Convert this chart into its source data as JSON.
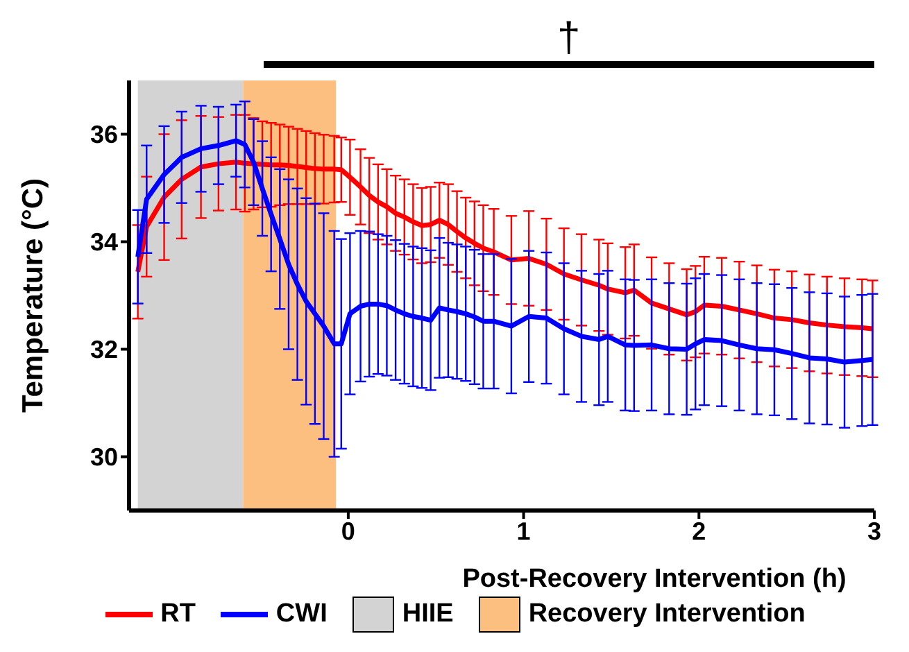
{
  "chart_data": {
    "type": "line",
    "xlabel": "Post-Recovery Intervention (h)",
    "ylabel": "Temperature (°C)",
    "annotations": [
      "†"
    ],
    "x": [
      -1.2,
      -1.15,
      -1.05,
      -0.95,
      -0.84,
      -0.74,
      -0.64,
      -0.59,
      -0.54,
      -0.49,
      -0.44,
      -0.39,
      -0.34,
      -0.29,
      -0.24,
      -0.19,
      -0.14,
      -0.08,
      -0.04,
      0.01,
      0.07,
      0.12,
      0.17,
      0.22,
      0.27,
      0.32,
      0.37,
      0.42,
      0.47,
      0.52,
      0.57,
      0.62,
      0.67,
      0.72,
      0.77,
      0.83,
      0.93,
      1.03,
      1.13,
      1.23,
      1.33,
      1.43,
      1.48,
      1.58,
      1.63,
      1.73,
      1.83,
      1.93,
      1.98,
      2.03,
      2.13,
      2.23,
      2.33,
      2.43,
      2.53,
      2.63,
      2.73,
      2.83,
      2.93,
      2.99
    ],
    "series": [
      {
        "name": "RT",
        "color": "#ff0000",
        "values": [
          33.44,
          34.28,
          34.83,
          35.16,
          35.39,
          35.45,
          35.48,
          35.46,
          35.45,
          35.44,
          35.43,
          35.43,
          35.42,
          35.4,
          35.38,
          35.36,
          35.35,
          35.35,
          35.34,
          35.2,
          35.02,
          34.86,
          34.74,
          34.65,
          34.53,
          34.46,
          34.37,
          34.3,
          34.32,
          34.4,
          34.32,
          34.19,
          34.07,
          33.97,
          33.88,
          33.81,
          33.66,
          33.69,
          33.58,
          33.4,
          33.29,
          33.19,
          33.12,
          33.05,
          33.1,
          32.86,
          32.75,
          32.64,
          32.7,
          32.82,
          32.8,
          32.73,
          32.66,
          32.58,
          32.55,
          32.49,
          32.45,
          32.42,
          32.4,
          32.38
        ],
        "errors": [
          0.87,
          0.93,
          1.17,
          1.1,
          0.95,
          0.87,
          0.88,
          0.9,
          0.85,
          0.8,
          0.78,
          0.75,
          0.72,
          0.7,
          0.68,
          0.66,
          0.64,
          0.62,
          0.6,
          0.7,
          0.7,
          0.7,
          0.7,
          0.7,
          0.7,
          0.7,
          0.7,
          0.7,
          0.7,
          0.7,
          0.75,
          0.75,
          0.75,
          0.78,
          0.8,
          0.8,
          0.82,
          0.88,
          0.85,
          0.85,
          0.85,
          0.85,
          0.85,
          0.85,
          0.85,
          0.85,
          0.85,
          0.85,
          0.85,
          0.9,
          0.9,
          0.9,
          0.9,
          0.9,
          0.9,
          0.9,
          0.9,
          0.9,
          0.9,
          0.9
        ]
      },
      {
        "name": "CWI",
        "color": "#0000ff",
        "values": [
          33.72,
          34.79,
          35.25,
          35.57,
          35.73,
          35.79,
          35.88,
          35.81,
          35.48,
          34.99,
          34.51,
          34.05,
          33.58,
          33.21,
          32.89,
          32.66,
          32.43,
          32.1,
          32.1,
          32.66,
          32.8,
          32.84,
          32.84,
          32.81,
          32.73,
          32.66,
          32.61,
          32.58,
          32.54,
          32.77,
          32.73,
          32.7,
          32.66,
          32.6,
          32.52,
          32.52,
          32.43,
          32.61,
          32.58,
          32.38,
          32.24,
          32.18,
          32.24,
          32.08,
          32.07,
          32.08,
          32.01,
          32,
          32.1,
          32.18,
          32.16,
          32.08,
          32.01,
          31.99,
          31.92,
          31.84,
          31.82,
          31.76,
          31.79,
          31.81
        ],
        "errors": [
          0.87,
          1.0,
          0.9,
          0.85,
          0.8,
          0.72,
          0.67,
          0.8,
          0.8,
          0.88,
          1.06,
          1.3,
          1.58,
          1.78,
          1.92,
          2.05,
          2.1,
          2.1,
          1.95,
          1.5,
          1.4,
          1.35,
          1.3,
          1.3,
          1.3,
          1.3,
          1.3,
          1.3,
          1.3,
          1.3,
          1.25,
          1.25,
          1.25,
          1.25,
          1.25,
          1.25,
          1.25,
          1.22,
          1.22,
          1.22,
          1.22,
          1.22,
          1.22,
          1.22,
          1.22,
          1.22,
          1.22,
          1.22,
          1.22,
          1.22,
          1.22,
          1.22,
          1.22,
          1.22,
          1.22,
          1.22,
          1.22,
          1.22,
          1.22,
          1.22
        ]
      }
    ],
    "bands": [
      {
        "axis": "x",
        "from": -1.2,
        "to": -0.6,
        "label": "HIIE",
        "color": "#d3d3d3"
      },
      {
        "axis": "x",
        "from": -0.6,
        "to": -0.07,
        "label": "Recovery Intervention",
        "color": "#fdbf80"
      }
    ],
    "xlim": [
      -1.25,
      3
    ],
    "xticks": [
      0,
      1,
      2,
      3
    ],
    "ylim": [
      29,
      37
    ],
    "yticks": [
      30,
      32,
      34,
      36
    ],
    "grid": false,
    "legend": "bottom",
    "line_style": "solid"
  }
}
